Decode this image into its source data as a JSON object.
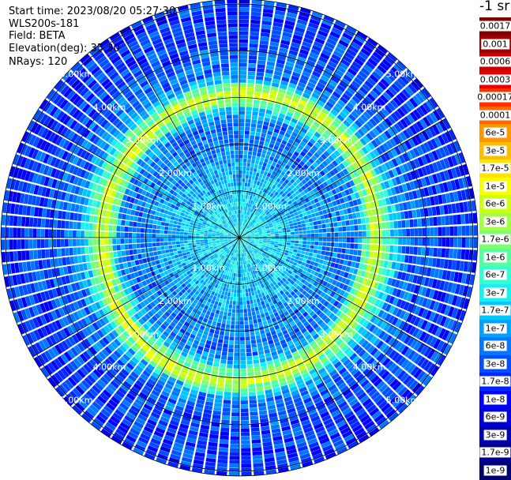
{
  "header": {
    "start_time": "Start time: 2023/08/20 05:27:30",
    "device": "WLS200s-181",
    "field": "Field: BETA",
    "elevation": "Elevation(deg): 35.30",
    "nrays": "NRays: 120"
  },
  "colorbar": {
    "title": "-1 sr",
    "labels": [
      "0.0017",
      "0.001",
      "0.0006",
      "0.0003",
      "0.00017",
      "0.0001",
      "6e-5",
      "3e-5",
      "1.7e-5",
      "1e-5",
      "6e-6",
      "3e-6",
      "1.7e-6",
      "1e-6",
      "6e-7",
      "3e-7",
      "1.7e-7",
      "1e-7",
      "6e-8",
      "3e-8",
      "1.7e-8",
      "1e-8",
      "6e-9",
      "3e-9",
      "1.7e-9",
      "1e-9"
    ],
    "colors": [
      "#7f0000",
      "#a00000",
      "#c80000",
      "#e80000",
      "#ff3000",
      "#ff6a00",
      "#ff9500",
      "#ffbd00",
      "#ffe400",
      "#f5ff00",
      "#ccff10",
      "#a4ff40",
      "#7cff6e",
      "#55ffa0",
      "#33ffd0",
      "#18f0f0",
      "#00c8ff",
      "#00a0ff",
      "#0078ff",
      "#0050ff",
      "#0028ff",
      "#0000ff",
      "#0000d8",
      "#0000b0",
      "#000090",
      "#000070"
    ]
  },
  "chart_data": {
    "type": "heatmap",
    "projection": "polar-ppi",
    "field": "BETA",
    "units": "sr-1",
    "n_rays": 120,
    "range_ring_labels": [
      "1.00km",
      "2.00km",
      "3.00km",
      "4.00km",
      "5.00km"
    ],
    "range_rings_km": [
      1,
      2,
      3,
      4,
      5
    ],
    "max_range_km": 5.1,
    "spokes_deg": 30,
    "color_scale": "log",
    "color_range": [
      1e-09,
      0.0017
    ],
    "radial_profile": {
      "range_km": [
        0.0,
        0.6,
        1.0,
        1.5,
        2.0,
        2.5,
        2.8,
        3.0,
        3.2,
        3.5,
        4.0,
        4.5,
        5.0,
        5.1
      ],
      "beta": [
        3e-07,
        2e-07,
        1.7e-07,
        1e-07,
        6e-08,
        5e-08,
        3e-07,
        3e-06,
        6e-07,
        6e-08,
        3e-08,
        2e-08,
        2e-08,
        2e-08
      ]
    },
    "features": {
      "layer_ring_range_km": 3.0,
      "layer_ring_beta": 3e-06
    }
  }
}
